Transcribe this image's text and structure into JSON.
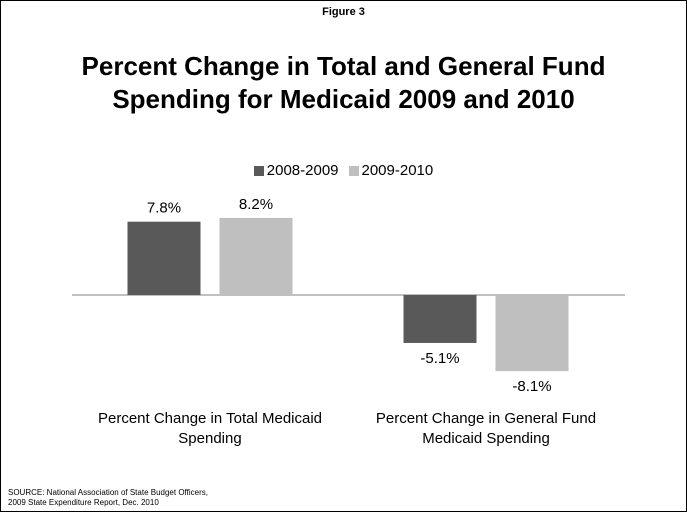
{
  "figure_label": "Figure 3",
  "title_lines": [
    "Percent Change in Total and General Fund",
    "Spending for Medicaid 2009 and 2010"
  ],
  "source_lines": [
    "SOURCE: National Association of State Budget Officers,",
    "2009 State Expenditure Report, Dec. 2010"
  ],
  "chart_data": {
    "type": "bar",
    "title": "Percent Change in Total and General Fund Spending for Medicaid 2009 and 2010",
    "categories": [
      [
        "Percent Change in Total Medicaid",
        "Spending"
      ],
      [
        "Percent Change in General Fund",
        "Medicaid Spending"
      ]
    ],
    "series": [
      {
        "name": "2008-2009",
        "color": "#595959",
        "values": [
          7.8,
          -5.1
        ],
        "labels": [
          "7.8%",
          "-5.1%"
        ]
      },
      {
        "name": "2009-2010",
        "color": "#bfbfbf",
        "values": [
          8.2,
          -8.1
        ],
        "labels": [
          "8.2%",
          "-8.1%"
        ]
      }
    ],
    "ylim": [
      -8.5,
      8.5
    ],
    "grid": false,
    "legend_position": "top-center",
    "xlabel": "",
    "ylabel": ""
  }
}
